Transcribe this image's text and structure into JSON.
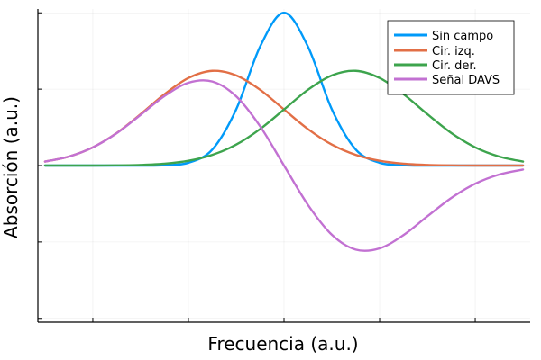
{
  "chart_data": {
    "type": "line",
    "xlabel": "Frecuencia (a.u.)",
    "ylabel": "Absorción (a.u.)",
    "x_range": [
      -5.15,
      5.15
    ],
    "ylim": [
      -1.025,
      1.025
    ],
    "grid": true,
    "tick_labels_shown": false,
    "legend_position": "top-right",
    "series": [
      {
        "name": "Sin campo",
        "color": "#009af9",
        "x": [
          -5.0,
          -4.5,
          -4.0,
          -3.5,
          -3.0,
          -2.5,
          -2.0,
          -1.5,
          -1.0,
          -0.5,
          0.0,
          0.5,
          1.0,
          1.5,
          2.0,
          2.5,
          3.0,
          3.5,
          4.0,
          4.5,
          5.0
        ],
        "y": [
          0.0,
          0.0,
          0.0,
          0.0,
          0.0,
          0.002,
          0.018,
          0.105,
          0.368,
          0.779,
          1.0,
          0.779,
          0.368,
          0.105,
          0.018,
          0.002,
          0.0,
          0.0,
          0.0,
          0.0,
          0.0
        ]
      },
      {
        "name": "Cir. izq.",
        "color": "#e26f46",
        "x": [
          -5.0,
          -4.5,
          -4.0,
          -3.5,
          -3.0,
          -2.5,
          -2.0,
          -1.5,
          -1.0,
          -0.5,
          0.0,
          0.5,
          1.0,
          1.5,
          2.0,
          2.5,
          3.0,
          3.5,
          4.0,
          4.5,
          5.0
        ],
        "y": [
          0.026,
          0.059,
          0.119,
          0.213,
          0.336,
          0.467,
          0.573,
          0.62,
          0.59,
          0.496,
          0.367,
          0.239,
          0.137,
          0.07,
          0.031,
          0.012,
          0.004,
          0.001,
          0.0,
          0.0,
          0.0
        ]
      },
      {
        "name": "Cir. der.",
        "color": "#3da44d",
        "x": [
          -5.0,
          -4.5,
          -4.0,
          -3.5,
          -3.0,
          -2.5,
          -2.0,
          -1.5,
          -1.0,
          -0.5,
          0.0,
          0.5,
          1.0,
          1.5,
          2.0,
          2.5,
          3.0,
          3.5,
          4.0,
          4.5,
          5.0
        ],
        "y": [
          0.0,
          0.0,
          0.0,
          0.001,
          0.004,
          0.012,
          0.031,
          0.07,
          0.137,
          0.239,
          0.367,
          0.496,
          0.59,
          0.62,
          0.573,
          0.467,
          0.336,
          0.213,
          0.119,
          0.059,
          0.026
        ]
      },
      {
        "name": "Señal DAVS",
        "color": "#c271d2",
        "x": [
          -5.0,
          -4.5,
          -4.0,
          -3.5,
          -3.0,
          -2.5,
          -2.0,
          -1.5,
          -1.0,
          -0.5,
          0.0,
          0.5,
          1.0,
          1.5,
          2.0,
          2.5,
          3.0,
          3.5,
          4.0,
          4.5,
          5.0
        ],
        "y": [
          0.026,
          0.059,
          0.119,
          0.212,
          0.332,
          0.455,
          0.542,
          0.55,
          0.453,
          0.257,
          0.0,
          -0.257,
          -0.453,
          -0.55,
          -0.542,
          -0.455,
          -0.332,
          -0.212,
          -0.119,
          -0.059,
          -0.026
        ]
      }
    ]
  }
}
